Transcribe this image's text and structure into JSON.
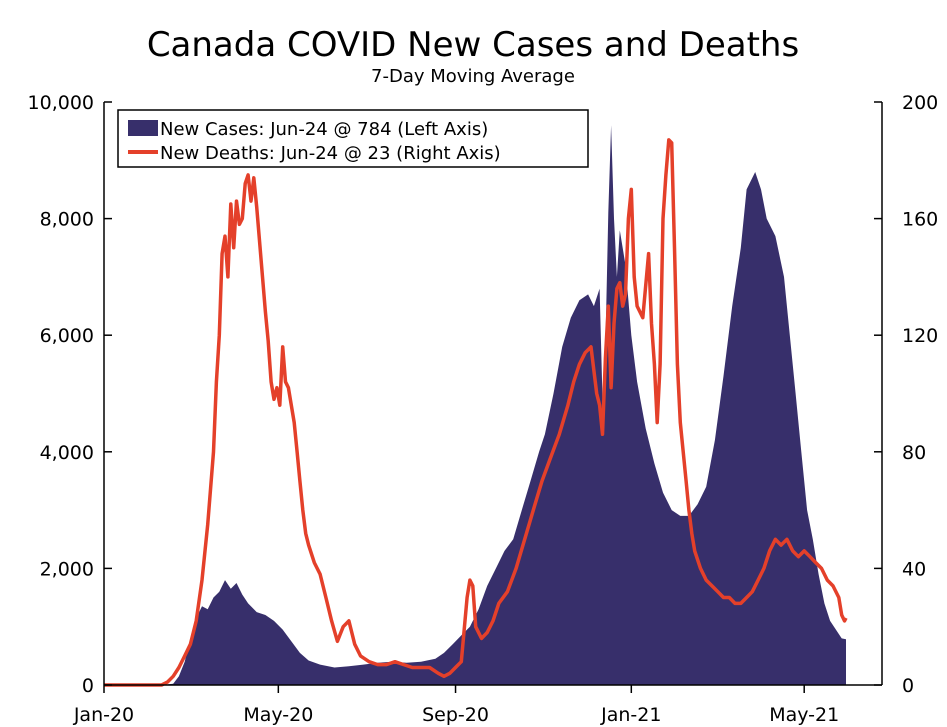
{
  "chart_data": {
    "type": "area+line",
    "title": "Canada COVID New Cases and Deaths",
    "subtitle": "7-Day Moving Average",
    "x_range_days": [
      0,
      540
    ],
    "x_ticks": [
      {
        "label": "Jan-20",
        "day": 0
      },
      {
        "label": "May-20",
        "day": 121
      },
      {
        "label": "Sep-20",
        "day": 244
      },
      {
        "label": "Jan-21",
        "day": 366
      },
      {
        "label": "May-21",
        "day": 486
      }
    ],
    "y_left": {
      "range": [
        0,
        10000
      ],
      "ticks": [
        "0",
        "2,000",
        "4,000",
        "6,000",
        "8,000",
        "10,000"
      ],
      "values": [
        0,
        2000,
        4000,
        6000,
        8000,
        10000
      ]
    },
    "y_right": {
      "range": [
        0,
        200
      ],
      "ticks": [
        "0",
        "40",
        "80",
        "120",
        "160",
        "200"
      ],
      "values": [
        0,
        40,
        80,
        120,
        160,
        200
      ]
    },
    "legend": {
      "position": "top-left",
      "cases_label": "New Cases: Jun-24 @ 784 (Left Axis)",
      "deaths_label": "New Deaths: Jun-24 @ 23 (Right Axis)"
    },
    "series": [
      {
        "name": "New Cases",
        "axis": "left",
        "style": "area",
        "color": "#372F6B",
        "points": [
          [
            0,
            0
          ],
          [
            40,
            0
          ],
          [
            48,
            20
          ],
          [
            52,
            150
          ],
          [
            56,
            400
          ],
          [
            60,
            800
          ],
          [
            64,
            1150
          ],
          [
            68,
            1350
          ],
          [
            72,
            1300
          ],
          [
            76,
            1500
          ],
          [
            80,
            1600
          ],
          [
            84,
            1800
          ],
          [
            88,
            1650
          ],
          [
            92,
            1750
          ],
          [
            96,
            1550
          ],
          [
            100,
            1400
          ],
          [
            106,
            1250
          ],
          [
            112,
            1200
          ],
          [
            118,
            1100
          ],
          [
            124,
            950
          ],
          [
            130,
            750
          ],
          [
            136,
            550
          ],
          [
            142,
            420
          ],
          [
            150,
            350
          ],
          [
            160,
            300
          ],
          [
            170,
            320
          ],
          [
            180,
            350
          ],
          [
            190,
            380
          ],
          [
            200,
            400
          ],
          [
            210,
            380
          ],
          [
            220,
            400
          ],
          [
            230,
            450
          ],
          [
            236,
            550
          ],
          [
            242,
            700
          ],
          [
            248,
            850
          ],
          [
            254,
            1000
          ],
          [
            260,
            1300
          ],
          [
            266,
            1700
          ],
          [
            272,
            2000
          ],
          [
            278,
            2300
          ],
          [
            284,
            2500
          ],
          [
            290,
            3000
          ],
          [
            296,
            3500
          ],
          [
            302,
            4000
          ],
          [
            306,
            4300
          ],
          [
            312,
            5000
          ],
          [
            318,
            5800
          ],
          [
            324,
            6300
          ],
          [
            330,
            6600
          ],
          [
            336,
            6700
          ],
          [
            340,
            6500
          ],
          [
            344,
            6800
          ],
          [
            346,
            4900
          ],
          [
            348,
            5800
          ],
          [
            350,
            8100
          ],
          [
            352,
            9600
          ],
          [
            354,
            8000
          ],
          [
            356,
            7000
          ],
          [
            358,
            7800
          ],
          [
            362,
            7200
          ],
          [
            366,
            6000
          ],
          [
            370,
            5200
          ],
          [
            376,
            4400
          ],
          [
            382,
            3800
          ],
          [
            388,
            3300
          ],
          [
            394,
            3000
          ],
          [
            400,
            2900
          ],
          [
            406,
            2900
          ],
          [
            412,
            3100
          ],
          [
            418,
            3400
          ],
          [
            424,
            4200
          ],
          [
            430,
            5300
          ],
          [
            436,
            6500
          ],
          [
            442,
            7500
          ],
          [
            446,
            8500
          ],
          [
            452,
            8800
          ],
          [
            456,
            8500
          ],
          [
            460,
            8000
          ],
          [
            466,
            7700
          ],
          [
            472,
            7000
          ],
          [
            476,
            6000
          ],
          [
            480,
            5000
          ],
          [
            484,
            4000
          ],
          [
            488,
            3000
          ],
          [
            492,
            2500
          ],
          [
            496,
            1900
          ],
          [
            500,
            1400
          ],
          [
            504,
            1100
          ],
          [
            508,
            950
          ],
          [
            512,
            800
          ],
          [
            515,
            784
          ],
          [
            515,
            0
          ]
        ]
      },
      {
        "name": "New Deaths",
        "axis": "right",
        "style": "line",
        "color": "#E4402A",
        "points": [
          [
            0,
            0
          ],
          [
            40,
            0
          ],
          [
            44,
            1
          ],
          [
            48,
            3
          ],
          [
            52,
            6
          ],
          [
            56,
            10
          ],
          [
            60,
            14
          ],
          [
            64,
            22
          ],
          [
            68,
            36
          ],
          [
            72,
            55
          ],
          [
            76,
            80
          ],
          [
            78,
            104
          ],
          [
            80,
            120
          ],
          [
            82,
            148
          ],
          [
            84,
            154
          ],
          [
            86,
            140
          ],
          [
            88,
            165
          ],
          [
            90,
            150
          ],
          [
            92,
            166
          ],
          [
            94,
            158
          ],
          [
            96,
            160
          ],
          [
            98,
            172
          ],
          [
            100,
            175
          ],
          [
            102,
            166
          ],
          [
            104,
            174
          ],
          [
            106,
            164
          ],
          [
            108,
            152
          ],
          [
            110,
            140
          ],
          [
            112,
            128
          ],
          [
            114,
            118
          ],
          [
            116,
            104
          ],
          [
            118,
            98
          ],
          [
            120,
            102
          ],
          [
            122,
            96
          ],
          [
            124,
            116
          ],
          [
            126,
            104
          ],
          [
            128,
            102
          ],
          [
            130,
            96
          ],
          [
            132,
            90
          ],
          [
            134,
            80
          ],
          [
            136,
            70
          ],
          [
            138,
            60
          ],
          [
            140,
            52
          ],
          [
            142,
            48
          ],
          [
            146,
            42
          ],
          [
            150,
            38
          ],
          [
            154,
            30
          ],
          [
            158,
            22
          ],
          [
            162,
            15
          ],
          [
            166,
            20
          ],
          [
            170,
            22
          ],
          [
            174,
            14
          ],
          [
            178,
            10
          ],
          [
            184,
            8
          ],
          [
            190,
            7
          ],
          [
            196,
            7
          ],
          [
            202,
            8
          ],
          [
            208,
            7
          ],
          [
            214,
            6
          ],
          [
            220,
            6
          ],
          [
            226,
            6
          ],
          [
            232,
            4
          ],
          [
            236,
            3
          ],
          [
            240,
            4
          ],
          [
            244,
            6
          ],
          [
            248,
            8
          ],
          [
            252,
            30
          ],
          [
            254,
            36
          ],
          [
            256,
            34
          ],
          [
            258,
            20
          ],
          [
            262,
            16
          ],
          [
            266,
            18
          ],
          [
            270,
            22
          ],
          [
            274,
            28
          ],
          [
            280,
            32
          ],
          [
            286,
            40
          ],
          [
            292,
            50
          ],
          [
            298,
            60
          ],
          [
            304,
            70
          ],
          [
            310,
            78
          ],
          [
            316,
            86
          ],
          [
            322,
            96
          ],
          [
            326,
            104
          ],
          [
            330,
            110
          ],
          [
            334,
            114
          ],
          [
            338,
            116
          ],
          [
            342,
            100
          ],
          [
            344,
            96
          ],
          [
            346,
            86
          ],
          [
            348,
            112
          ],
          [
            350,
            130
          ],
          [
            352,
            102
          ],
          [
            354,
            124
          ],
          [
            356,
            136
          ],
          [
            358,
            138
          ],
          [
            360,
            130
          ],
          [
            362,
            134
          ],
          [
            364,
            160
          ],
          [
            366,
            170
          ],
          [
            368,
            140
          ],
          [
            370,
            130
          ],
          [
            374,
            126
          ],
          [
            378,
            148
          ],
          [
            380,
            124
          ],
          [
            382,
            110
          ],
          [
            384,
            90
          ],
          [
            386,
            110
          ],
          [
            388,
            160
          ],
          [
            390,
            175
          ],
          [
            392,
            187
          ],
          [
            394,
            186
          ],
          [
            396,
            150
          ],
          [
            398,
            110
          ],
          [
            400,
            90
          ],
          [
            402,
            80
          ],
          [
            404,
            70
          ],
          [
            406,
            60
          ],
          [
            408,
            52
          ],
          [
            410,
            46
          ],
          [
            414,
            40
          ],
          [
            418,
            36
          ],
          [
            422,
            34
          ],
          [
            426,
            32
          ],
          [
            430,
            30
          ],
          [
            434,
            30
          ],
          [
            438,
            28
          ],
          [
            442,
            28
          ],
          [
            446,
            30
          ],
          [
            450,
            32
          ],
          [
            454,
            36
          ],
          [
            458,
            40
          ],
          [
            462,
            46
          ],
          [
            466,
            50
          ],
          [
            470,
            48
          ],
          [
            474,
            50
          ],
          [
            478,
            46
          ],
          [
            482,
            44
          ],
          [
            486,
            46
          ],
          [
            490,
            44
          ],
          [
            494,
            42
          ],
          [
            498,
            40
          ],
          [
            502,
            36
          ],
          [
            506,
            34
          ],
          [
            510,
            30
          ],
          [
            512,
            24
          ],
          [
            514,
            22
          ],
          [
            515,
            23
          ]
        ]
      }
    ]
  }
}
